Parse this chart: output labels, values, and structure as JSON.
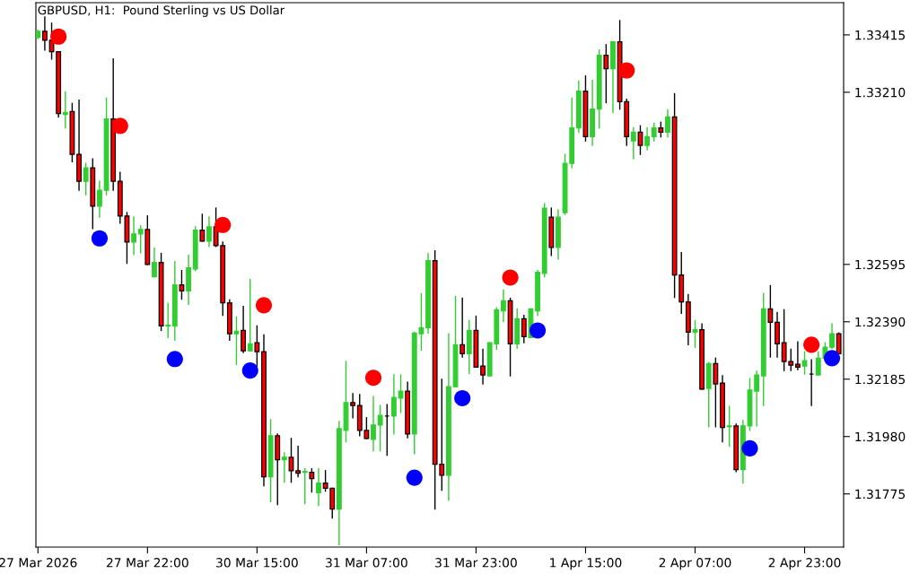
{
  "chart_data": {
    "type": "candlestick",
    "title": "GBPUSD, H1:  Pound Sterling vs US Dollar",
    "categories": [
      "27 Mar 2026",
      null,
      null,
      null,
      null,
      null,
      null,
      null,
      null,
      null,
      null,
      null,
      null,
      null,
      null,
      null,
      "27 Mar 22:00",
      null,
      null,
      null,
      null,
      null,
      null,
      null,
      null,
      null,
      null,
      null,
      null,
      null,
      null,
      null,
      "30 Mar 15:00",
      null,
      null,
      null,
      null,
      null,
      null,
      null,
      null,
      null,
      null,
      null,
      null,
      null,
      null,
      null,
      "31 Mar 07:00",
      null,
      null,
      null,
      null,
      null,
      null,
      null,
      null,
      null,
      null,
      null,
      null,
      null,
      null,
      null,
      "31 Mar 23:00",
      null,
      null,
      null,
      null,
      null,
      null,
      null,
      null,
      null,
      null,
      null,
      null,
      null,
      null,
      null,
      "1 Apr 15:00",
      null,
      null,
      null,
      null,
      null,
      null,
      null,
      null,
      null,
      null,
      null,
      null,
      null,
      null,
      null,
      "2 Apr 07:00",
      null,
      null,
      null,
      null,
      null,
      null,
      null,
      null,
      null,
      null,
      null,
      null,
      null,
      null,
      null,
      "2 Apr 23:00",
      null,
      null,
      null,
      null,
      null
    ],
    "ohlc": [
      [
        1.33406,
        1.33431,
        1.33402,
        1.33428
      ],
      [
        1.33428,
        1.33479,
        1.33361,
        1.33396
      ],
      [
        1.33396,
        1.33457,
        1.33329,
        1.33355
      ],
      [
        1.33355,
        1.33355,
        1.33122,
        1.33134
      ],
      [
        1.33131,
        1.33211,
        1.33083,
        1.33138
      ],
      [
        1.33141,
        1.3317,
        1.32962,
        1.32988
      ],
      [
        1.32988,
        1.33182,
        1.3286,
        1.32892
      ],
      [
        1.32892,
        1.32956,
        1.32844,
        1.3294
      ],
      [
        1.3294,
        1.32972,
        1.32723,
        1.32803
      ],
      [
        1.32803,
        1.32892,
        1.32764,
        1.3286
      ],
      [
        1.3286,
        1.33189,
        1.32844,
        1.33115
      ],
      [
        1.33115,
        1.33329,
        1.3286,
        1.32892
      ],
      [
        1.32892,
        1.32924,
        1.32742,
        1.32768
      ],
      [
        1.32768,
        1.3278,
        1.32599,
        1.32675
      ],
      [
        1.32675,
        1.32764,
        1.3263,
        1.32704
      ],
      [
        1.32704,
        1.32732,
        1.32637,
        1.3272
      ],
      [
        1.3272,
        1.32768,
        1.32595,
        1.32595
      ],
      [
        1.32551,
        1.32653,
        1.32551,
        1.32602
      ],
      [
        1.32602,
        1.32634,
        1.32359,
        1.32375
      ],
      [
        1.32375,
        1.32455,
        1.32334,
        1.32378
      ],
      [
        1.32375,
        1.32605,
        1.32324,
        1.32522
      ],
      [
        1.32522,
        1.32573,
        1.32471,
        1.325
      ],
      [
        1.325,
        1.32627,
        1.32452,
        1.32583
      ],
      [
        1.32579,
        1.32729,
        1.32573,
        1.32717
      ],
      [
        1.32717,
        1.32774,
        1.32678,
        1.32678
      ],
      [
        1.32678,
        1.32764,
        1.32659,
        1.32729
      ],
      [
        1.32729,
        1.32796,
        1.32659,
        1.32662
      ],
      [
        1.32662,
        1.32675,
        1.32413,
        1.32458
      ],
      [
        1.32458,
        1.32468,
        1.32324,
        1.32347
      ],
      [
        1.32347,
        1.32407,
        1.32238,
        1.32356
      ],
      [
        1.32359,
        1.32445,
        1.3228,
        1.32286
      ],
      [
        1.32286,
        1.32541,
        1.32286,
        1.32311
      ],
      [
        1.32315,
        1.32375,
        1.32232,
        1.32283
      ],
      [
        1.32283,
        1.32343,
        1.31804,
        1.31836
      ],
      [
        1.31836,
        1.3204,
        1.31747,
        1.31983
      ],
      [
        1.31983,
        1.31989,
        1.31737,
        1.31897
      ],
      [
        1.31897,
        1.31922,
        1.31817,
        1.31906
      ],
      [
        1.31906,
        1.31973,
        1.31817,
        1.31858
      ],
      [
        1.31858,
        1.31945,
        1.31836,
        1.31849
      ],
      [
        1.31852,
        1.31865,
        1.3174,
        1.31855
      ],
      [
        1.31852,
        1.31865,
        1.31782,
        1.3183
      ],
      [
        1.31779,
        1.31865,
        1.31734,
        1.31814
      ],
      [
        1.31814,
        1.31858,
        1.31785,
        1.31795
      ],
      [
        1.31795,
        1.31795,
        1.31689,
        1.31721
      ],
      [
        1.31721,
        1.32034,
        1.31594,
        1.32008
      ],
      [
        1.32002,
        1.32248,
        1.31961,
        1.32101
      ],
      [
        1.32101,
        1.32133,
        1.32047,
        1.32091
      ],
      [
        1.32091,
        1.3213,
        1.31983,
        1.32002
      ],
      [
        1.32002,
        1.32047,
        1.31973,
        1.31973
      ],
      [
        1.3197,
        1.32123,
        1.31929,
        1.32021
      ],
      [
        1.32021,
        1.32091,
        1.31929,
        1.32056
      ],
      [
        1.32053,
        1.32094,
        1.31913,
        1.32053
      ],
      [
        1.32053,
        1.322,
        1.31989,
        1.3212
      ],
      [
        1.32117,
        1.322,
        1.32066,
        1.32142
      ],
      [
        1.32142,
        1.32174,
        1.31976,
        1.31989
      ],
      [
        1.31989,
        1.32353,
        1.31919,
        1.3235
      ],
      [
        1.32347,
        1.3249,
        1.32289,
        1.32369
      ],
      [
        1.32369,
        1.32634,
        1.3235,
        1.32608
      ],
      [
        1.32608,
        1.32643,
        1.31721,
        1.31881
      ],
      [
        1.31881,
        1.32184,
        1.31788,
        1.31842
      ],
      [
        1.31842,
        1.32347,
        1.31753,
        1.32158
      ],
      [
        1.32158,
        1.3248,
        1.32158,
        1.32308
      ],
      [
        1.32308,
        1.32474,
        1.32264,
        1.32276
      ],
      [
        1.32276,
        1.32394,
        1.32206,
        1.32359
      ],
      [
        1.32359,
        1.3241,
        1.32228,
        1.32228
      ],
      [
        1.32232,
        1.32292,
        1.32168,
        1.322
      ],
      [
        1.32197,
        1.32315,
        1.32197,
        1.32315
      ],
      [
        1.32311,
        1.32439,
        1.32292,
        1.32433
      ],
      [
        1.32429,
        1.32503,
        1.32391,
        1.32465
      ],
      [
        1.32465,
        1.32474,
        1.32197,
        1.32311
      ],
      [
        1.32311,
        1.32436,
        1.32295,
        1.32401
      ],
      [
        1.32401,
        1.32413,
        1.32315,
        1.32337
      ],
      [
        1.32334,
        1.32436,
        1.32334,
        1.32436
      ],
      [
        1.32429,
        1.32573,
        1.32413,
        1.32567
      ],
      [
        1.32563,
        1.32812,
        1.32551,
        1.32796
      ],
      [
        1.32764,
        1.32796,
        1.32627,
        1.32656
      ],
      [
        1.32656,
        1.3279,
        1.32614,
        1.32764
      ],
      [
        1.3278,
        1.32988,
        1.32774,
        1.32956
      ],
      [
        1.32956,
        1.33189,
        1.3294,
        1.33083
      ],
      [
        1.33083,
        1.33249,
        1.33067,
        1.33214
      ],
      [
        1.33214,
        1.33268,
        1.33036,
        1.33051
      ],
      [
        1.33051,
        1.33252,
        1.3302,
        1.3315
      ],
      [
        1.3315,
        1.33361,
        1.33083,
        1.33342
      ],
      [
        1.33342,
        1.3338,
        1.33173,
        1.33294
      ],
      [
        1.33294,
        1.3339,
        1.33138,
        1.3339
      ],
      [
        1.3339,
        1.33466,
        1.3315,
        1.33176
      ],
      [
        1.33176,
        1.33185,
        1.3302,
        1.33051
      ],
      [
        1.33036,
        1.33083,
        1.32972,
        1.33067
      ],
      [
        1.33067,
        1.3309,
        1.32988,
        1.3302
      ],
      [
        1.3302,
        1.33083,
        1.33004,
        1.33051
      ],
      [
        1.33051,
        1.33099,
        1.33036,
        1.33083
      ],
      [
        1.33083,
        1.33103,
        1.33051,
        1.33067
      ],
      [
        1.33067,
        1.33147,
        1.33051,
        1.33122
      ],
      [
        1.33122,
        1.33205,
        1.32477,
        1.32557
      ],
      [
        1.32557,
        1.32637,
        1.3242,
        1.32461
      ],
      [
        1.32461,
        1.32487,
        1.32308,
        1.32353
      ],
      [
        1.32353,
        1.32394,
        1.32299,
        1.32362
      ],
      [
        1.32362,
        1.32382,
        1.32149,
        1.32149
      ],
      [
        1.32152,
        1.32244,
        1.32015,
        1.32241
      ],
      [
        1.32241,
        1.3226,
        1.32015,
        1.32168
      ],
      [
        1.32171,
        1.32197,
        1.31961,
        1.32012
      ],
      [
        1.32015,
        1.32088,
        1.31945,
        1.32018
      ],
      [
        1.32018,
        1.32024,
        1.31855,
        1.31862
      ],
      [
        1.31862,
        1.32037,
        1.31814,
        1.32018
      ],
      [
        1.32018,
        1.32187,
        1.32002,
        1.32146
      ],
      [
        1.32142,
        1.32213,
        1.32018,
        1.322
      ],
      [
        1.32197,
        1.3249,
        1.32091,
        1.32436
      ],
      [
        1.32436,
        1.32519,
        1.32264,
        1.32388
      ],
      [
        1.32388,
        1.32423,
        1.32264,
        1.32311
      ],
      [
        1.32315,
        1.32433,
        1.32216,
        1.32248
      ],
      [
        1.32248,
        1.32292,
        1.32216,
        1.32235
      ],
      [
        1.32238,
        1.32318,
        1.32219,
        1.32228
      ],
      [
        1.32232,
        1.32283,
        1.32203,
        1.32251
      ],
      [
        1.32203,
        1.32254,
        1.32091,
        1.32203
      ],
      [
        1.322,
        1.32283,
        1.322,
        1.3226
      ],
      [
        1.3226,
        1.32315,
        1.3226,
        1.32299
      ],
      [
        1.32299,
        1.32382,
        1.32295,
        1.32347
      ],
      [
        1.32347,
        1.3235,
        1.32276,
        1.32276
      ]
    ],
    "colors": [
      "#32cd32",
      "#ff0000",
      "#ff0000",
      "#ff0000",
      "#32cd32",
      "#ff0000",
      "#ff0000",
      "#32cd32",
      "#ff0000",
      "#32cd32",
      "#32cd32",
      "#ff0000",
      "#ff0000",
      "#ff0000",
      "#32cd32",
      "#32cd32",
      "#ff0000",
      "#32cd32",
      "#ff0000",
      "#32cd32",
      "#32cd32",
      "#ff0000",
      "#32cd32",
      "#32cd32",
      "#ff0000",
      "#32cd32",
      "#ff0000",
      "#ff0000",
      "#ff0000",
      "#32cd32",
      "#ff0000",
      "#32cd32",
      "#ff0000",
      "#ff0000",
      "#32cd32",
      "#ff0000",
      "#32cd32",
      "#ff0000",
      "#ff0000",
      "#32cd32",
      "#ff0000",
      "#32cd32",
      "#ff0000",
      "#ff0000",
      "#32cd32",
      "#32cd32",
      "#ff0000",
      "#ff0000",
      "#ff0000",
      "#32cd32",
      "#32cd32",
      "#000000",
      "#32cd32",
      "#32cd32",
      "#ff0000",
      "#32cd32",
      "#32cd32",
      "#32cd32",
      "#ff0000",
      "#ff0000",
      "#32cd32",
      "#32cd32",
      "#ff0000",
      "#32cd32",
      "#ff0000",
      "#ff0000",
      "#32cd32",
      "#32cd32",
      "#32cd32",
      "#ff0000",
      "#32cd32",
      "#ff0000",
      "#32cd32",
      "#32cd32",
      "#32cd32",
      "#ff0000",
      "#32cd32",
      "#32cd32",
      "#32cd32",
      "#32cd32",
      "#ff0000",
      "#32cd32",
      "#32cd32",
      "#ff0000",
      "#32cd32",
      "#ff0000",
      "#ff0000",
      "#32cd32",
      "#ff0000",
      "#32cd32",
      "#32cd32",
      "#ff0000",
      "#32cd32",
      "#ff0000",
      "#ff0000",
      "#ff0000",
      "#32cd32",
      "#ff0000",
      "#32cd32",
      "#ff0000",
      "#ff0000",
      "#32cd32",
      "#ff0000",
      "#32cd32",
      "#32cd32",
      "#32cd32",
      "#32cd32",
      "#ff0000",
      "#ff0000",
      "#ff0000",
      "#ff0000",
      "#ff0000",
      "#32cd32",
      "#000000",
      "#32cd32",
      "#32cd32",
      "#32cd32",
      "#ff0000"
    ],
    "series": [
      {
        "type": "scatter",
        "color": "#ff0000",
        "marker": "circle",
        "values": [
          null,
          null,
          null,
          1.33409,
          null,
          null,
          null,
          null,
          null,
          null,
          null,
          null,
          1.3309,
          null,
          null,
          null,
          null,
          null,
          null,
          null,
          null,
          null,
          null,
          null,
          null,
          null,
          null,
          1.32736,
          null,
          null,
          null,
          null,
          null,
          1.32449,
          null,
          null,
          null,
          null,
          null,
          null,
          null,
          null,
          null,
          null,
          null,
          null,
          null,
          null,
          null,
          1.3219,
          null,
          null,
          null,
          null,
          null,
          null,
          null,
          null,
          null,
          null,
          null,
          null,
          null,
          null,
          null,
          null,
          null,
          null,
          null,
          1.32548,
          null,
          null,
          null,
          null,
          null,
          null,
          null,
          null,
          null,
          null,
          null,
          null,
          null,
          null,
          null,
          null,
          1.33288,
          null,
          null,
          null,
          null,
          null,
          null,
          null,
          null,
          null,
          null,
          null,
          null,
          null,
          null,
          null,
          null,
          null,
          null,
          null,
          null,
          null,
          null,
          null,
          null,
          null,
          null,
          1.32308,
          null,
          null,
          null,
          null
        ]
      },
      {
        "type": "scatter",
        "color": "#0000ff",
        "marker": "circle",
        "values": [
          null,
          null,
          null,
          null,
          null,
          null,
          null,
          null,
          null,
          1.32688,
          null,
          null,
          null,
          null,
          null,
          null,
          null,
          null,
          null,
          null,
          1.32257,
          null,
          null,
          null,
          null,
          null,
          null,
          null,
          null,
          null,
          null,
          1.32216,
          null,
          null,
          null,
          null,
          null,
          null,
          null,
          null,
          null,
          null,
          null,
          null,
          null,
          null,
          null,
          null,
          null,
          null,
          null,
          null,
          null,
          null,
          null,
          1.31833,
          null,
          null,
          null,
          null,
          null,
          null,
          1.32117,
          null,
          null,
          null,
          null,
          null,
          null,
          null,
          null,
          null,
          null,
          1.32359,
          null,
          null,
          null,
          null,
          null,
          null,
          null,
          null,
          null,
          null,
          null,
          null,
          null,
          null,
          null,
          null,
          null,
          null,
          null,
          null,
          null,
          null,
          null,
          null,
          null,
          null,
          null,
          null,
          null,
          null,
          1.31938,
          null,
          null,
          null,
          null,
          null,
          null,
          null,
          null,
          null,
          null,
          null,
          1.3226,
          null
        ]
      }
    ],
    "ylim": [
      1.31585,
      1.3353
    ],
    "yticks": [
      1.33415,
      {
        "value": 1.3321,
        "label": "1.33210"
      },
      1.32595,
      {
        "value": 1.3239,
        "label": "1.32390"
      },
      1.32185,
      {
        "value": 1.3198,
        "label": "1.31980"
      },
      1.31775
    ],
    "grid": false,
    "legend": false
  }
}
